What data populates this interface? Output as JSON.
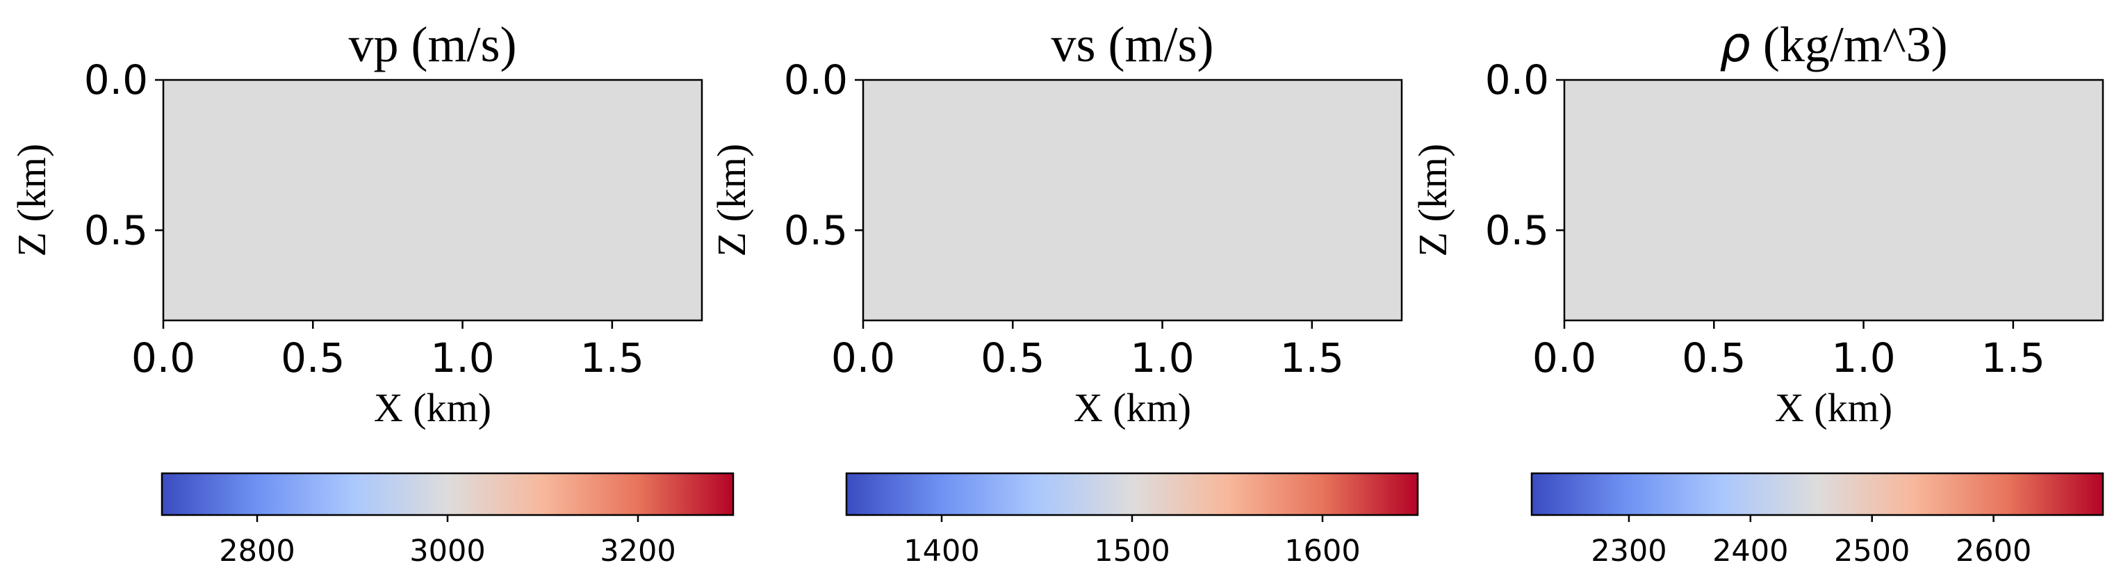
{
  "chart_data": [
    {
      "type": "heatmap",
      "title": "vp (m/s)",
      "title_symbol": "",
      "xlabel": "X (km)",
      "ylabel": "Z (km)",
      "xlim": [
        0,
        1.8
      ],
      "ylim": [
        0.8,
        0
      ],
      "xticks": [
        0,
        0.5,
        1.0,
        1.5
      ],
      "xtick_labels": [
        "0.0",
        "0.5",
        "1.0",
        "1.5"
      ],
      "yticks": [
        0,
        0.5
      ],
      "ytick_labels": [
        "0.0",
        "0.5"
      ],
      "field_value": 3000,
      "colorbar": {
        "cmap": "coolwarm",
        "range": [
          2700,
          3300
        ],
        "ticks": [
          2800,
          3000,
          3200
        ],
        "tick_labels": [
          "2800",
          "3000",
          "3200"
        ]
      }
    },
    {
      "type": "heatmap",
      "title": "vs (m/s)",
      "title_symbol": "",
      "xlabel": "X (km)",
      "ylabel": "Z (km)",
      "xlim": [
        0,
        1.8
      ],
      "ylim": [
        0.8,
        0
      ],
      "xticks": [
        0,
        0.5,
        1.0,
        1.5
      ],
      "xtick_labels": [
        "0.0",
        "0.5",
        "1.0",
        "1.5"
      ],
      "yticks": [
        0,
        0.5
      ],
      "ytick_labels": [
        "0.0",
        "0.5"
      ],
      "field_value": 1500,
      "colorbar": {
        "cmap": "coolwarm",
        "range": [
          1350,
          1650
        ],
        "ticks": [
          1400,
          1500,
          1600
        ],
        "tick_labels": [
          "1400",
          "1500",
          "1600"
        ]
      }
    },
    {
      "type": "heatmap",
      "title": " (kg/m^3)",
      "title_symbol": "ρ",
      "xlabel": "X (km)",
      "ylabel": "Z (km)",
      "xlim": [
        0,
        1.8
      ],
      "ylim": [
        0.8,
        0
      ],
      "xticks": [
        0,
        0.5,
        1.0,
        1.5
      ],
      "xtick_labels": [
        "0.0",
        "0.5",
        "1.0",
        "1.5"
      ],
      "yticks": [
        0,
        0.5
      ],
      "ytick_labels": [
        "0.0",
        "0.5"
      ],
      "field_value": 2450,
      "colorbar": {
        "cmap": "coolwarm",
        "range": [
          2220,
          2690
        ],
        "ticks": [
          2300,
          2400,
          2500,
          2600
        ],
        "tick_labels": [
          "2300",
          "2400",
          "2500",
          "2600"
        ]
      }
    }
  ],
  "colors": {
    "field_fill": "#dcdcdc",
    "axis": "#000000",
    "cmap_stops": [
      "#3b4cc0",
      "#6f92f3",
      "#aac7fd",
      "#dddcdc",
      "#f7b89c",
      "#e7745b",
      "#b40426"
    ]
  }
}
